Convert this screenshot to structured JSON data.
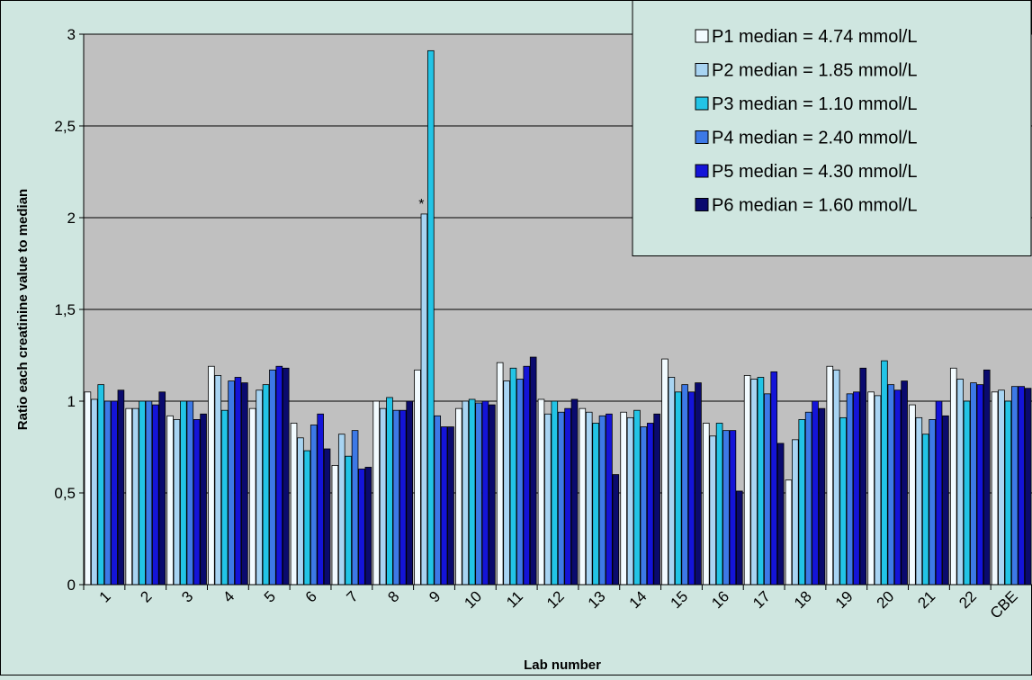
{
  "chart_data": {
    "type": "bar",
    "xlabel": "Lab number",
    "ylabel": "Ratio each creatinine value  to median",
    "ylim": [
      0,
      3
    ],
    "yticks": [
      "0",
      "0,5",
      "1",
      "1,5",
      "2",
      "2,5",
      "3"
    ],
    "grid": true,
    "legend_position": "top-right",
    "annotation": {
      "text": "*",
      "category": "9",
      "series": "P2 median = 1.85 mmol/L"
    },
    "categories": [
      "1",
      "2",
      "3",
      "4",
      "5",
      "6",
      "7",
      "8",
      "9",
      "10",
      "11",
      "12",
      "13",
      "14",
      "15",
      "16",
      "17",
      "18",
      "19",
      "20",
      "21",
      "22",
      "CBE"
    ],
    "series": [
      {
        "name": "P1 median = 4.74 mmol/L",
        "color": "#f2fbff",
        "values": [
          1.05,
          0.96,
          0.92,
          1.19,
          0.96,
          0.88,
          0.65,
          1.0,
          1.17,
          0.96,
          1.21,
          1.01,
          0.96,
          0.94,
          1.23,
          0.88,
          1.14,
          0.57,
          1.19,
          1.05,
          0.98,
          1.18,
          1.05
        ]
      },
      {
        "name": "P2 median = 1.85 mmol/L",
        "color": "#a8d4f2",
        "values": [
          1.01,
          0.96,
          0.9,
          1.14,
          1.06,
          0.8,
          0.82,
          0.96,
          2.02,
          1.0,
          1.11,
          0.93,
          0.94,
          0.91,
          1.13,
          0.81,
          1.12,
          0.79,
          1.17,
          1.03,
          0.91,
          1.12,
          1.06
        ]
      },
      {
        "name": "P3 median = 1.10 mmol/L",
        "color": "#22c4e6",
        "values": [
          1.09,
          1.0,
          1.0,
          0.95,
          1.09,
          0.73,
          0.7,
          1.02,
          2.91,
          1.01,
          1.18,
          1.0,
          0.88,
          0.95,
          1.05,
          0.88,
          1.13,
          0.9,
          0.91,
          1.22,
          0.82,
          1.0,
          1.0
        ]
      },
      {
        "name": "P4 median = 2.40 mmol/L",
        "color": "#3d79e6",
        "values": [
          1.0,
          1.0,
          1.0,
          1.11,
          1.17,
          0.87,
          0.84,
          0.95,
          0.92,
          0.99,
          1.12,
          0.94,
          0.92,
          0.86,
          1.09,
          0.84,
          1.04,
          0.94,
          1.04,
          1.09,
          0.9,
          1.1,
          1.08
        ]
      },
      {
        "name": "P5 median = 4.30 mmol/L",
        "color": "#1414d8",
        "values": [
          1.0,
          0.98,
          0.9,
          1.13,
          1.19,
          0.93,
          0.63,
          0.95,
          0.86,
          1.0,
          1.19,
          0.96,
          0.93,
          0.88,
          1.05,
          0.84,
          1.16,
          1.0,
          1.05,
          1.06,
          1.0,
          1.09,
          1.08
        ]
      },
      {
        "name": "P6 median = 1.60 mmol/L",
        "color": "#0a0a6e",
        "values": [
          1.06,
          1.05,
          0.93,
          1.1,
          1.18,
          0.74,
          0.64,
          1.0,
          0.86,
          0.98,
          1.24,
          1.01,
          0.6,
          0.93,
          1.1,
          0.51,
          0.77,
          0.96,
          1.18,
          1.11,
          0.92,
          1.17,
          1.07
        ]
      }
    ]
  }
}
